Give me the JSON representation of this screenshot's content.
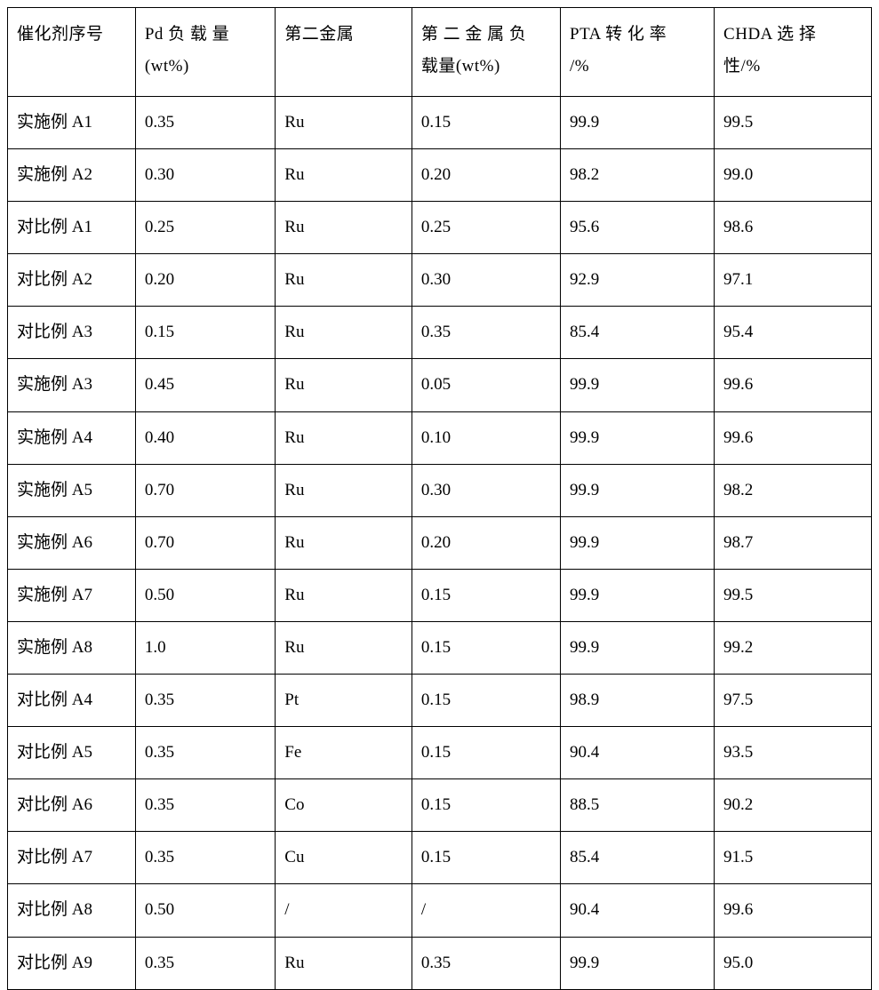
{
  "table": {
    "border_color": "#000000",
    "background_color": "#ffffff",
    "text_color": "#000000",
    "font_size": 19,
    "font_family": "SimSun",
    "columns": [
      {
        "label": "催化剂序号",
        "width_pct": 14.8
      },
      {
        "label_line1": "Pd 负 载 量",
        "label_line2": "(wt%)",
        "width_pct": 16.2
      },
      {
        "label": "第二金属",
        "width_pct": 15.8
      },
      {
        "label_line1": "第 二 金 属 负",
        "label_line2": "载量(wt%)",
        "width_pct": 17.2
      },
      {
        "label_line1": "PTA 转 化 率",
        "label_line2": "/%",
        "width_pct": 17.8
      },
      {
        "label_line1": "CHDA 选 择",
        "label_line2": "性/%",
        "width_pct": 18.2
      }
    ],
    "rows": [
      {
        "catalyst_id": "实施例 A1",
        "pd_loading": "0.35",
        "second_metal": "Ru",
        "second_metal_loading": "0.15",
        "pta_conversion": "99.9",
        "chda_selectivity": "99.5"
      },
      {
        "catalyst_id": "实施例 A2",
        "pd_loading": "0.30",
        "second_metal": "Ru",
        "second_metal_loading": "0.20",
        "pta_conversion": "98.2",
        "chda_selectivity": "99.0"
      },
      {
        "catalyst_id": "对比例 A1",
        "pd_loading": "0.25",
        "second_metal": "Ru",
        "second_metal_loading": "0.25",
        "pta_conversion": "95.6",
        "chda_selectivity": "98.6"
      },
      {
        "catalyst_id": "对比例 A2",
        "pd_loading": "0.20",
        "second_metal": "Ru",
        "second_metal_loading": "0.30",
        "pta_conversion": "92.9",
        "chda_selectivity": "97.1"
      },
      {
        "catalyst_id": "对比例 A3",
        "pd_loading": "0.15",
        "second_metal": "Ru",
        "second_metal_loading": "0.35",
        "pta_conversion": "85.4",
        "chda_selectivity": "95.4"
      },
      {
        "catalyst_id": "实施例 A3",
        "pd_loading": "0.45",
        "second_metal": "Ru",
        "second_metal_loading": "0.05",
        "pta_conversion": "99.9",
        "chda_selectivity": "99.6"
      },
      {
        "catalyst_id": "实施例 A4",
        "pd_loading": "0.40",
        "second_metal": "Ru",
        "second_metal_loading": "0.10",
        "pta_conversion": "99.9",
        "chda_selectivity": "99.6"
      },
      {
        "catalyst_id": "实施例 A5",
        "pd_loading": "0.70",
        "second_metal": "Ru",
        "second_metal_loading": "0.30",
        "pta_conversion": "99.9",
        "chda_selectivity": "98.2"
      },
      {
        "catalyst_id": "实施例 A6",
        "pd_loading": "0.70",
        "second_metal": "Ru",
        "second_metal_loading": "0.20",
        "pta_conversion": "99.9",
        "chda_selectivity": "98.7"
      },
      {
        "catalyst_id": "实施例 A7",
        "pd_loading": "0.50",
        "second_metal": "Ru",
        "second_metal_loading": "0.15",
        "pta_conversion": "99.9",
        "chda_selectivity": "99.5"
      },
      {
        "catalyst_id": "实施例 A8",
        "pd_loading": "1.0",
        "second_metal": "Ru",
        "second_metal_loading": "0.15",
        "pta_conversion": "99.9",
        "chda_selectivity": "99.2"
      },
      {
        "catalyst_id": "对比例 A4",
        "pd_loading": "0.35",
        "second_metal": "Pt",
        "second_metal_loading": "0.15",
        "pta_conversion": "98.9",
        "chda_selectivity": "97.5"
      },
      {
        "catalyst_id": "对比例 A5",
        "pd_loading": "0.35",
        "second_metal": "Fe",
        "second_metal_loading": "0.15",
        "pta_conversion": "90.4",
        "chda_selectivity": "93.5"
      },
      {
        "catalyst_id": "对比例 A6",
        "pd_loading": "0.35",
        "second_metal": "Co",
        "second_metal_loading": "0.15",
        "pta_conversion": "88.5",
        "chda_selectivity": "90.2"
      },
      {
        "catalyst_id": "对比例 A7",
        "pd_loading": "0.35",
        "second_metal": "Cu",
        "second_metal_loading": "0.15",
        "pta_conversion": "85.4",
        "chda_selectivity": "91.5"
      },
      {
        "catalyst_id": "对比例 A8",
        "pd_loading": "0.50",
        "second_metal": "/",
        "second_metal_loading": "/",
        "pta_conversion": "90.4",
        "chda_selectivity": "99.6"
      },
      {
        "catalyst_id": "对比例 A9",
        "pd_loading": "0.35",
        "second_metal": "Ru",
        "second_metal_loading": "0.35",
        "pta_conversion": "99.9",
        "chda_selectivity": "95.0"
      }
    ]
  }
}
